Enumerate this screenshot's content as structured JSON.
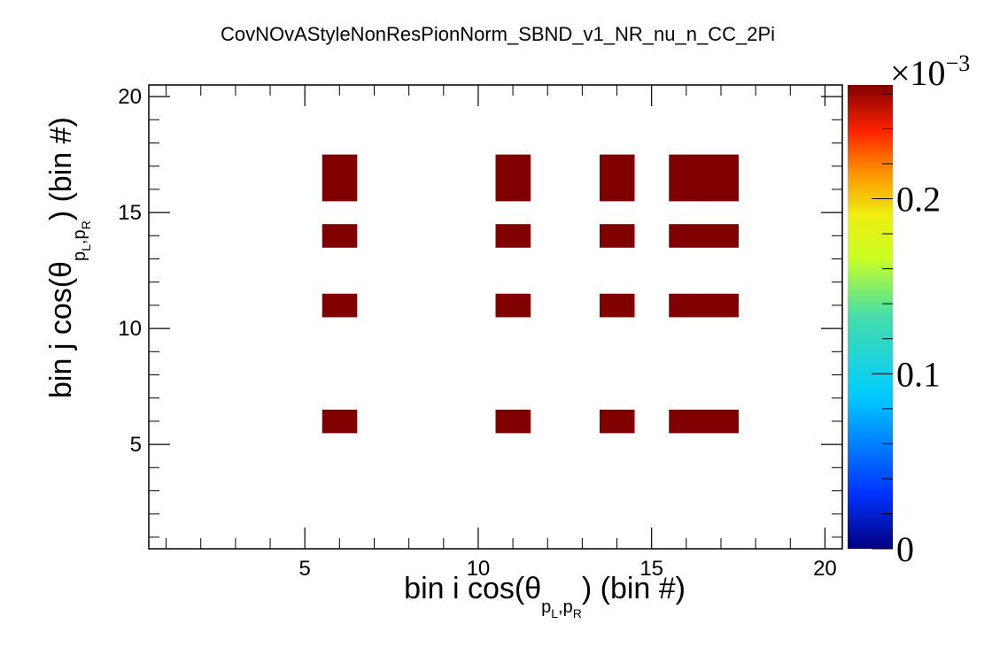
{
  "chart_data": {
    "type": "heatmap",
    "title": "CovNOvAStyleNonResPionNorm_SBND_v1_NR_nu_n_CC_2Pi",
    "xlabel": {
      "pre": "bin i cos(θ",
      "sub": "p",
      "sub1": "L",
      "sub2": ",p",
      "sub3": "R",
      "post": ") (bin #)"
    },
    "ylabel": {
      "pre": "bin j cos(θ",
      "sub": "p",
      "sub1": "L",
      "sub2": ",p",
      "sub3": "R",
      "post": ") (bin #)"
    },
    "xlim": [
      0.5,
      20.5
    ],
    "ylim": [
      0.5,
      20.5
    ],
    "x_ticks": [
      5,
      10,
      15,
      20
    ],
    "y_ticks": [
      5,
      10,
      15,
      20
    ],
    "x_tick_labels": [
      "5",
      "10",
      "15",
      "20"
    ],
    "y_tick_labels": [
      "5",
      "10",
      "15",
      "20"
    ],
    "z_range": [
      0,
      0.000265
    ],
    "z_multiplier": "×10",
    "z_multiplier_exp": "−3",
    "z_ticks": [
      0,
      0.0001,
      0.0002
    ],
    "z_tick_labels": [
      "0",
      "0.1",
      "0.2"
    ],
    "palette": "rainbow",
    "cell_color": "#800000",
    "nonzero_value": 0.000265,
    "x_bins": [
      6,
      11,
      14,
      16,
      17
    ],
    "y_bins": [
      6,
      11,
      14,
      16,
      17
    ],
    "cells": [
      {
        "x": 6,
        "y": 6
      },
      {
        "x": 11,
        "y": 6
      },
      {
        "x": 14,
        "y": 6
      },
      {
        "x": 16,
        "y": 6
      },
      {
        "x": 17,
        "y": 6
      },
      {
        "x": 6,
        "y": 11
      },
      {
        "x": 11,
        "y": 11
      },
      {
        "x": 14,
        "y": 11
      },
      {
        "x": 16,
        "y": 11
      },
      {
        "x": 17,
        "y": 11
      },
      {
        "x": 6,
        "y": 14
      },
      {
        "x": 11,
        "y": 14
      },
      {
        "x": 14,
        "y": 14
      },
      {
        "x": 16,
        "y": 14
      },
      {
        "x": 17,
        "y": 14
      },
      {
        "x": 6,
        "y": 16
      },
      {
        "x": 11,
        "y": 16
      },
      {
        "x": 14,
        "y": 16
      },
      {
        "x": 16,
        "y": 16
      },
      {
        "x": 17,
        "y": 16
      },
      {
        "x": 6,
        "y": 17
      },
      {
        "x": 11,
        "y": 17
      },
      {
        "x": 14,
        "y": 17
      },
      {
        "x": 16,
        "y": 17
      },
      {
        "x": 17,
        "y": 17
      }
    ]
  }
}
